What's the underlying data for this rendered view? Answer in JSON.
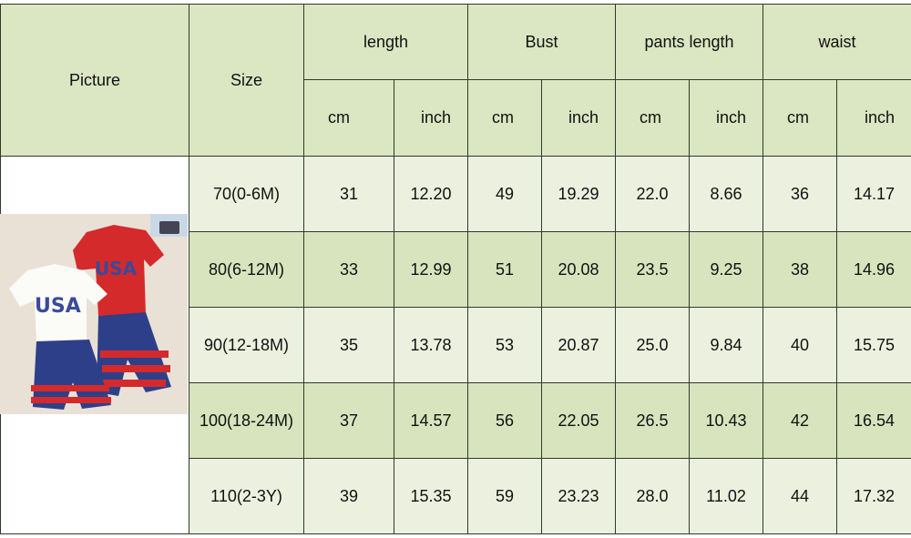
{
  "headers": {
    "picture": "Picture",
    "size": "Size",
    "groups": [
      "length",
      "Bust",
      "pants length",
      "waist"
    ],
    "units": [
      "cm",
      "inch"
    ]
  },
  "rows": [
    {
      "size": "70(0-6M)",
      "values": [
        "31",
        "12.20",
        "49",
        "19.29",
        "22.0",
        "8.66",
        "36",
        "14.17"
      ]
    },
    {
      "size": "80(6-12M)",
      "values": [
        "33",
        "12.99",
        "51",
        "20.08",
        "23.5",
        "9.25",
        "38",
        "14.96"
      ]
    },
    {
      "size": "90(12-18M)",
      "values": [
        "35",
        "13.78",
        "53",
        "20.87",
        "25.0",
        "9.84",
        "40",
        "15.75"
      ]
    },
    {
      "size": "100(18-24M)",
      "values": [
        "37",
        "14.57",
        "56",
        "22.05",
        "26.5",
        "10.43",
        "42",
        "16.54"
      ]
    },
    {
      "size": "110(2-3Y)",
      "values": [
        "39",
        "15.35",
        "59",
        "23.23",
        "28.0",
        "11.02",
        "44",
        "17.32"
      ]
    }
  ],
  "picture_logo_text": "USA",
  "colors": {
    "header": "#dbe6c2",
    "row_light": "#ebf1de",
    "row_dark": "#d7e4bd",
    "border": "#2f3a2a"
  }
}
